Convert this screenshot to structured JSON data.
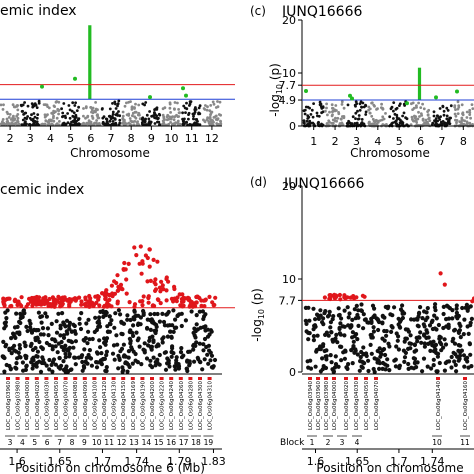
{
  "panels": {
    "a": {
      "title": "emic index",
      "xlabel": "Chromosome",
      "chrom_labels": [
        "2",
        "3",
        "4",
        "5",
        "6",
        "7",
        "8",
        "9",
        "10",
        "11",
        "12"
      ]
    },
    "c": {
      "letter": "(c)",
      "title": "IUNQ16666",
      "ylabel": "-log",
      "ylabel_sub": "10",
      "ylabel_tail": " (p)",
      "yticks": [
        "20",
        "10",
        "7.7",
        "4.9",
        "0"
      ],
      "chrom_labels": [
        "1",
        "2",
        "3",
        "4",
        "5",
        "6",
        "7",
        "8"
      ],
      "xlabel": "Chromosome"
    },
    "b": {
      "title": "cemic index",
      "xlabel": "Position on chromosome 6 (Mb)",
      "xticks": [
        "1.6",
        "1.65",
        "1.7",
        "1.74",
        "1.79",
        "1.83"
      ],
      "genes": [
        "LOC_Os06g03960",
        "LOC_Os06g03980",
        "LOC_Os06g04000",
        "LOC_Os06g04020",
        "LOC_Os06g04030",
        "LOC_Os06g04050",
        "LOC_Os06g04070",
        "LOC_Os06g04080",
        "LOC_Os06g04090",
        "LOC_Os06g04100",
        "LOC_Os06g04120",
        "LOC_Os06g04130",
        "LOC_Os06g04150",
        "LOC_Os06g04169",
        "LOC_Os06g04190",
        "LOC_Os06g04200",
        "LOC_Os06g04220",
        "LOC_Os06g04240",
        "LOC_Os06g04260",
        "LOC_Os06g04280",
        "LOC_Os06g04300",
        "LOC_Os06g04310"
      ],
      "blocks": [
        "3",
        "4",
        "5",
        "6",
        "7",
        "8",
        "9",
        "10",
        "11",
        "12",
        "13",
        "14",
        "15",
        "16",
        "17",
        "18",
        "19"
      ]
    },
    "d": {
      "letter": "(d)",
      "title": "IUNQ16666",
      "ylabel": "-log",
      "ylabel_sub": "10",
      "ylabel_tail": " (p)",
      "yticks": [
        "20",
        "10",
        "7.7",
        "0"
      ],
      "xticks": [
        "1.6",
        "1.65",
        "1.7",
        "1.74"
      ],
      "xlabel": "Position on chromosome",
      "block_label": "Block",
      "blocks": [
        "1",
        "2",
        "3",
        "4",
        "10",
        "11"
      ],
      "genes": [
        "LOC_Os06g03940",
        "LOC_Os06g03960",
        "LOC_Os06g03980",
        "LOC_Os06g04000",
        "LOC_Os06g04020",
        "LOC_Os06g04030",
        "LOC_Os06g04050",
        "LOC_Os06g04070",
        "LOC_Os06g04140",
        "LOC_Os06g04160"
      ]
    }
  },
  "colors": {
    "threshold_red": "#e31a1c",
    "threshold_blue": "#1f3fd6",
    "sig_green": "#22bb22",
    "black": "#111111",
    "grey": "#888888",
    "sig_red": "#e0161b"
  },
  "chart_data": [
    {
      "type": "scatter",
      "panel": "a",
      "title": "emic index",
      "xlabel": "Chromosome",
      "categories": [
        "2",
        "3",
        "4",
        "5",
        "6",
        "7",
        "8",
        "9",
        "10",
        "11",
        "12"
      ],
      "peak_chromosome": "6",
      "peak_value": 19,
      "thresholds": [
        7.7,
        4.9
      ]
    },
    {
      "type": "scatter",
      "panel": "c",
      "title": "IUNQ16666",
      "xlabel": "Chromosome",
      "ylabel": "-log10 (p)",
      "ylim": [
        0,
        20
      ],
      "categories": [
        "1",
        "2",
        "3",
        "4",
        "5",
        "6",
        "7",
        "8"
      ],
      "peak_chromosome": "6",
      "peak_value": 11,
      "thresholds": [
        7.7,
        4.9
      ]
    },
    {
      "type": "scatter",
      "panel": "b",
      "title": "cemic index",
      "xlabel": "Position on chromosome 6 (Mb)",
      "xlim": [
        1.58,
        1.84
      ],
      "threshold": 7.7,
      "max_value": 16
    },
    {
      "type": "scatter",
      "panel": "d",
      "title": "IUNQ16666",
      "xlabel": "Position on chromosome",
      "ylabel": "-log10 (p)",
      "ylim": [
        0,
        20
      ],
      "threshold": 7.7,
      "max_value": 10.5
    }
  ]
}
